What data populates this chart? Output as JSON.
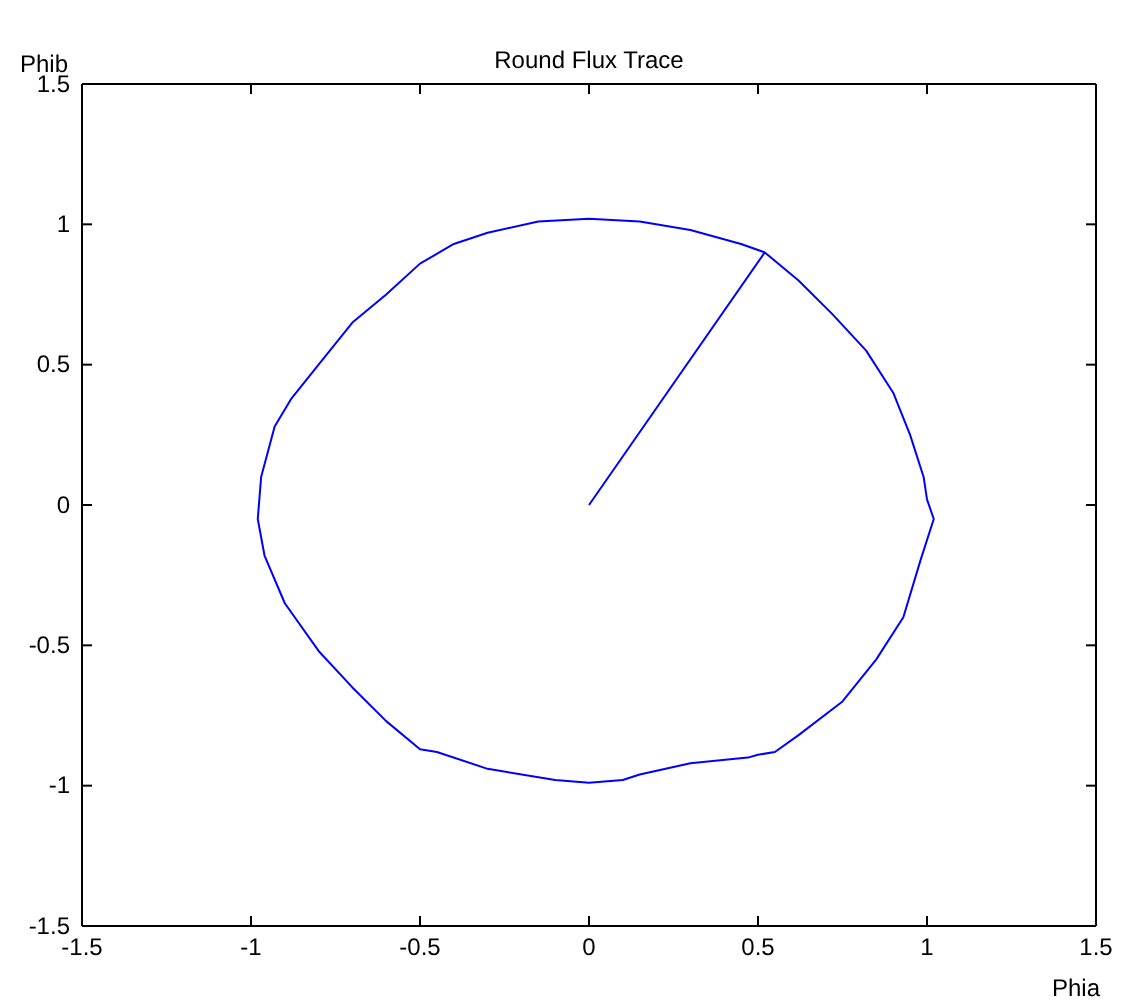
{
  "chart_data": {
    "type": "line",
    "title": "Round Flux Trace",
    "xlabel": "Phia",
    "ylabel": "Phib",
    "xlim": [
      -1.5,
      1.5
    ],
    "ylim": [
      -1.5,
      1.5
    ],
    "xticks": [
      -1.5,
      -1,
      -0.5,
      0,
      0.5,
      1,
      1.5
    ],
    "yticks": [
      -1.5,
      -1,
      -0.5,
      0,
      0.5,
      1,
      1.5
    ],
    "grid": false,
    "marker": "none",
    "line_style": "solid",
    "series": [
      {
        "color": "#0000ff",
        "x": [
          0,
          0.52,
          0.62,
          0.72,
          0.82,
          0.9,
          0.95,
          0.99,
          1.0,
          1.02,
          0.98,
          0.93,
          0.85,
          0.75,
          0.62,
          0.55,
          0.5,
          0.47,
          0.3,
          0.15,
          0.1,
          0,
          -0.1,
          -0.3,
          -0.45,
          -0.5,
          -0.6,
          -0.7,
          -0.8,
          -0.9,
          -0.96,
          -0.98,
          -0.97,
          -0.93,
          -0.88,
          -0.8,
          -0.7,
          -0.6,
          -0.5,
          -0.4,
          -0.3,
          -0.15,
          0,
          0.15,
          0.3,
          0.45,
          0.52
        ],
        "values": [
          0,
          0.9,
          0.8,
          0.68,
          0.55,
          0.4,
          0.25,
          0.1,
          0.02,
          -0.05,
          -0.2,
          -0.4,
          -0.55,
          -0.7,
          -0.82,
          -0.88,
          -0.89,
          -0.9,
          -0.92,
          -0.96,
          -0.98,
          -0.99,
          -0.98,
          -0.94,
          -0.88,
          -0.87,
          -0.77,
          -0.65,
          -0.52,
          -0.35,
          -0.18,
          -0.05,
          0.1,
          0.28,
          0.38,
          0.5,
          0.65,
          0.75,
          0.86,
          0.93,
          0.97,
          1.01,
          1.02,
          1.01,
          0.98,
          0.93,
          0.9
        ]
      }
    ]
  }
}
